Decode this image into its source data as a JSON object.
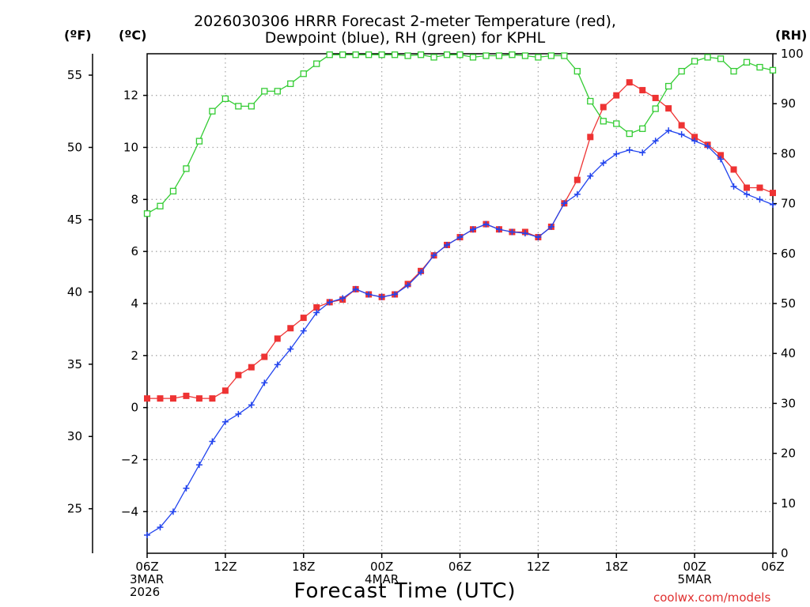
{
  "chart_data": {
    "type": "line",
    "title_line1": "2026030306 HRRR Forecast 2-meter Temperature (red),",
    "title_line2": "Dewpoint (blue), RH (green) for KPHL",
    "xlabel": "Forecast Time (UTC)",
    "credit": "coolwx.com/models",
    "unit_labels": {
      "left_far": "(ºF)",
      "left": "(ºC)",
      "right": "(RH)"
    },
    "x_range_hours": [
      0,
      48
    ],
    "x_ticks": [
      {
        "h": 0,
        "lines": [
          "06Z",
          "3MAR",
          "2026"
        ]
      },
      {
        "h": 6,
        "lines": [
          "12Z"
        ]
      },
      {
        "h": 12,
        "lines": [
          "18Z"
        ]
      },
      {
        "h": 18,
        "lines": [
          "00Z",
          "4MAR"
        ]
      },
      {
        "h": 24,
        "lines": [
          "06Z"
        ]
      },
      {
        "h": 30,
        "lines": [
          "12Z"
        ]
      },
      {
        "h": 36,
        "lines": [
          "18Z"
        ]
      },
      {
        "h": 42,
        "lines": [
          "00Z",
          "5MAR"
        ]
      },
      {
        "h": 48,
        "lines": [
          "06Z"
        ]
      }
    ],
    "ylim_c": [
      -5.6,
      13.6
    ],
    "yticks_c": [
      "−4",
      "−2",
      "0",
      "2",
      "4",
      "6",
      "8",
      "10",
      "12"
    ],
    "yticks_c_values": [
      -4,
      -2,
      0,
      2,
      4,
      6,
      8,
      10,
      12
    ],
    "yticks_f": [
      "25",
      "30",
      "35",
      "40",
      "45",
      "50",
      "55"
    ],
    "yticks_f_values": [
      25,
      30,
      35,
      40,
      45,
      50,
      55
    ],
    "ylim_rh": [
      0,
      100
    ],
    "yticks_rh": [
      "0",
      "10",
      "20",
      "30",
      "40",
      "50",
      "60",
      "70",
      "80",
      "90",
      "100"
    ],
    "yticks_rh_values": [
      0,
      10,
      20,
      30,
      40,
      50,
      60,
      70,
      80,
      90,
      100
    ],
    "series": [
      {
        "name": "Temperature (°C)",
        "color": "#ee3333",
        "marker": "filled-square",
        "axis": "c",
        "values": [
          0.35,
          0.35,
          0.35,
          0.45,
          0.35,
          0.35,
          0.65,
          1.25,
          1.55,
          1.95,
          2.65,
          3.05,
          3.45,
          3.85,
          4.05,
          4.15,
          4.55,
          4.35,
          4.25,
          4.35,
          4.75,
          5.25,
          5.85,
          6.25,
          6.55,
          6.85,
          7.05,
          6.85,
          6.75,
          6.75,
          6.55,
          6.95,
          7.85,
          8.75,
          10.4,
          11.55,
          12.0,
          12.5,
          12.2,
          11.9,
          11.5,
          10.85,
          10.4,
          10.1,
          9.7,
          9.15,
          8.45,
          8.45,
          8.25
        ]
      },
      {
        "name": "Dewpoint (°C)",
        "color": "#2244ee",
        "marker": "plus",
        "axis": "c",
        "values": [
          -4.9,
          -4.6,
          -4.0,
          -3.1,
          -2.2,
          -1.3,
          -0.55,
          -0.25,
          0.1,
          0.95,
          1.65,
          2.25,
          2.95,
          3.65,
          4.05,
          4.2,
          4.55,
          4.35,
          4.25,
          4.35,
          4.7,
          5.2,
          5.85,
          6.25,
          6.55,
          6.85,
          7.05,
          6.85,
          6.75,
          6.7,
          6.55,
          6.95,
          7.85,
          8.2,
          8.9,
          9.4,
          9.75,
          9.9,
          9.8,
          10.25,
          10.65,
          10.5,
          10.25,
          10.05,
          9.55,
          8.5,
          8.2,
          8.0,
          7.8
        ]
      },
      {
        "name": "Relative Humidity (%)",
        "color": "#33cc33",
        "marker": "open-square",
        "axis": "rh",
        "values": [
          68,
          69.5,
          72.5,
          77,
          82.5,
          88.5,
          91,
          89.5,
          89.5,
          92.5,
          92.5,
          94,
          96,
          98,
          99.8,
          99.8,
          99.8,
          99.8,
          99.8,
          99.8,
          99.6,
          99.8,
          99.3,
          99.8,
          99.8,
          99.3,
          99.6,
          99.6,
          99.8,
          99.6,
          99.3,
          99.6,
          99.6,
          96.5,
          90.5,
          86.5,
          86,
          84,
          85,
          89,
          93.5,
          96.5,
          98.5,
          99.3,
          99,
          96.5,
          98.3,
          97.3,
          96.7
        ]
      }
    ]
  }
}
